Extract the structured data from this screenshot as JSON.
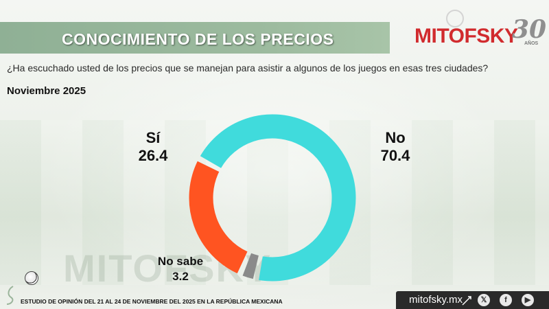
{
  "header": {
    "title": "CONOCIMIENTO DE LOS PRECIOS",
    "logo_text": "MITOFSKY",
    "logo_years": "30",
    "logo_years_suffix": "AÑOS"
  },
  "question": "¿Ha escuchado usted de los precios que se manejan para asistir a algunos de los juegos en esas tres ciudades?",
  "period": "Noviembre 2025",
  "watermark": "MITOFSKY",
  "chart_data": {
    "type": "pie",
    "donut": true,
    "title": "",
    "series": [
      {
        "name": "No",
        "value": 70.4,
        "color": "#40dbdc"
      },
      {
        "name": "No sabe",
        "value": 3.2,
        "color": "#8a8a8a"
      },
      {
        "name": "Sí",
        "value": 26.4,
        "color": "#ff5421"
      }
    ],
    "labels": {
      "si_name": "Sí",
      "si_value": "26.4",
      "no_name": "No",
      "no_value": "70.4",
      "ns_name": "No sabe",
      "ns_value": "3.2"
    }
  },
  "footer": {
    "study_text": "ESTUDIO DE OPINIÓN DEL 21 AL 24 DE NOVIEMBRE DEL 2025 EN LA REPÚBLICA MEXICANA",
    "site": "mitofsky.mx",
    "social_icons": [
      "x-icon",
      "facebook-icon",
      "youtube-icon"
    ]
  }
}
